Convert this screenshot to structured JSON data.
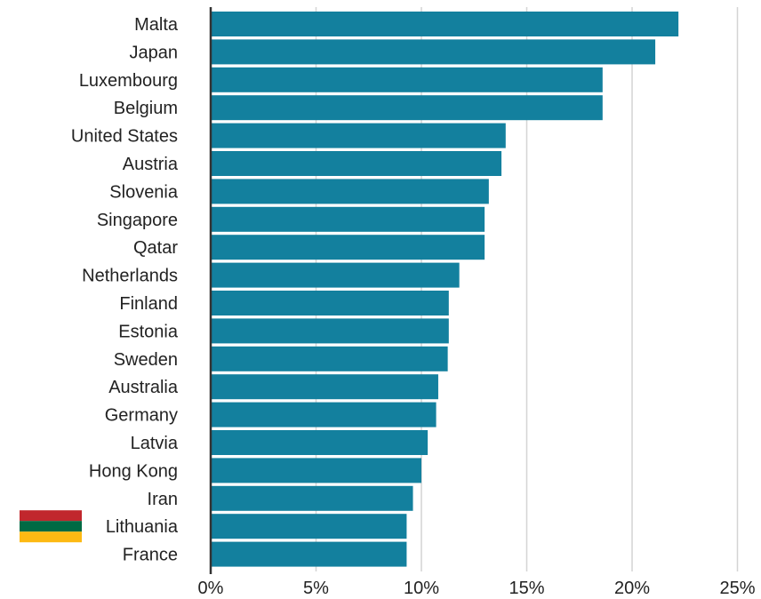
{
  "chart_data": {
    "type": "bar",
    "orientation": "horizontal",
    "categories": [
      "Malta",
      "Japan",
      "Luxembourg",
      "Belgium",
      "United States",
      "Austria",
      "Slovenia",
      "Singapore",
      "Qatar",
      "Netherlands",
      "Finland",
      "Estonia",
      "Sweden",
      "Australia",
      "Germany",
      "Latvia",
      "Hong Kong",
      "Iran",
      "Lithuania",
      "France"
    ],
    "values": [
      22.2,
      21.1,
      18.6,
      18.6,
      14.0,
      13.8,
      13.2,
      13.0,
      13.0,
      11.8,
      11.3,
      11.3,
      11.25,
      10.8,
      10.7,
      10.3,
      10.0,
      9.6,
      9.3,
      9.3
    ],
    "xlim": [
      0,
      25
    ],
    "xticks": [
      0,
      5,
      10,
      15,
      20,
      25
    ],
    "xtick_labels": [
      "0%",
      "5%",
      "10%",
      "15%",
      "20%",
      "25%"
    ],
    "grid": "vertical",
    "highlight": {
      "category": "Lithuania",
      "icon": "lithuania-flag-icon",
      "flag_colors": [
        "#c1272d",
        "#006a44",
        "#fdb913"
      ]
    },
    "colors": {
      "bar": "#13809e",
      "grid": "#d4d4d4",
      "axis": "#333333",
      "text": "#222222"
    }
  }
}
